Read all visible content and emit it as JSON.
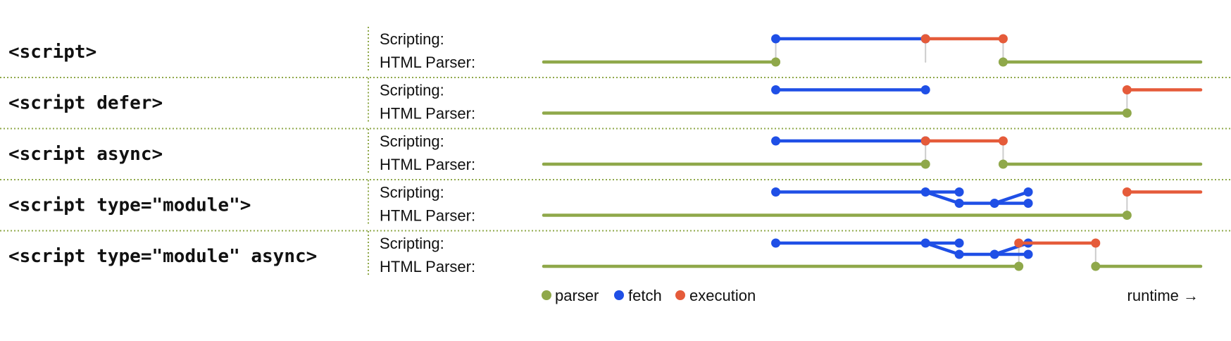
{
  "row_labels": {
    "scripting": "Scripting:",
    "parser": "HTML Parser:"
  },
  "colors": {
    "parser": "#8fa84a",
    "fetch": "#1f4fe6",
    "execution": "#e55b3a",
    "connector": "#cccccc",
    "separator": "#8fa84a"
  },
  "rows": [
    {
      "label": "<script>",
      "parser": [
        [
          0,
          296
        ],
        [
          586,
          838
        ]
      ],
      "fetch": [
        [
          296,
          487
        ]
      ],
      "execution": [
        [
          487,
          586
        ]
      ],
      "connectors": [
        296,
        487,
        586
      ]
    },
    {
      "label": "<script defer>",
      "parser": [
        [
          0,
          744
        ]
      ],
      "fetch": [
        [
          296,
          487
        ]
      ],
      "execution": [
        [
          744,
          838
        ]
      ],
      "connectors": [
        744
      ]
    },
    {
      "label": "<script async>",
      "parser": [
        [
          0,
          487
        ],
        [
          586,
          838
        ]
      ],
      "fetch": [
        [
          296,
          487
        ]
      ],
      "execution": [
        [
          487,
          586
        ]
      ],
      "connectors": [
        487,
        586
      ]
    },
    {
      "label": "<script type=\"module\">",
      "parser": [
        [
          0,
          744
        ]
      ],
      "fetch": [
        [
          296,
          487
        ]
      ],
      "module_fetch": true,
      "execution": [
        [
          744,
          838
        ]
      ],
      "connectors": [
        744
      ]
    },
    {
      "label": "<script type=\"module\" async>",
      "parser": [
        [
          0,
          606
        ],
        [
          704,
          838
        ]
      ],
      "fetch": [
        [
          296,
          487
        ]
      ],
      "module_fetch": true,
      "execution": [
        [
          606,
          704
        ]
      ],
      "connectors": [
        606,
        704
      ]
    }
  ],
  "legend": {
    "parser": "parser",
    "fetch": "fetch",
    "execution": "execution"
  },
  "runtime_label": "runtime →"
}
